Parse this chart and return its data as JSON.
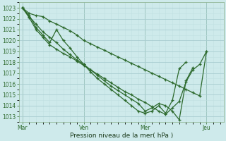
{
  "xlabel": "Pression niveau de la mer( hPa )",
  "background_color": "#ceeaeb",
  "grid_color_major": "#a8cdd0",
  "grid_color_minor": "#c0e0e2",
  "line_color": "#2d6a2d",
  "ylim": [
    1012.5,
    1023.5
  ],
  "yticks": [
    1013,
    1014,
    1015,
    1016,
    1017,
    1018,
    1019,
    1020,
    1021,
    1022,
    1023
  ],
  "xtick_labels": [
    "Mar",
    "Ven",
    "Mer",
    "Jeu"
  ],
  "xtick_positions": [
    0,
    9,
    18,
    27
  ],
  "xlim": [
    -0.5,
    29.5
  ],
  "series": [
    {
      "x": [
        0,
        1,
        2,
        3,
        4,
        5,
        6,
        7,
        8,
        9,
        10,
        11,
        12,
        13,
        14,
        15,
        16,
        17,
        18,
        19,
        20,
        21,
        22,
        23,
        24,
        25,
        26,
        27
      ],
      "y": [
        1023.0,
        1022.5,
        1022.3,
        1022.2,
        1021.8,
        1021.5,
        1021.2,
        1020.9,
        1020.5,
        1020.0,
        1019.7,
        1019.4,
        1019.1,
        1018.8,
        1018.5,
        1018.2,
        1017.9,
        1017.6,
        1017.3,
        1017.0,
        1016.7,
        1016.4,
        1016.1,
        1015.8,
        1015.5,
        1015.2,
        1014.9,
        1019.0
      ]
    },
    {
      "x": [
        0,
        1,
        2,
        3,
        4,
        5,
        6,
        7,
        8,
        9,
        10,
        11,
        12,
        13,
        14,
        15,
        16,
        17,
        18,
        19,
        20,
        21,
        22,
        23,
        24,
        25
      ],
      "y": [
        1023.0,
        1022.2,
        1021.5,
        1020.8,
        1020.3,
        1019.8,
        1019.2,
        1018.7,
        1018.2,
        1017.8,
        1017.3,
        1016.8,
        1016.3,
        1015.8,
        1015.4,
        1015.0,
        1014.6,
        1014.2,
        1013.5,
        1013.8,
        1014.2,
        1014.0,
        1013.5,
        1012.7,
        1016.3,
        1017.5
      ]
    },
    {
      "x": [
        0,
        1,
        2,
        3,
        4,
        5,
        6,
        7,
        8,
        9,
        10,
        11,
        12,
        13,
        14,
        15,
        16,
        17,
        18,
        19,
        20,
        21,
        22,
        23,
        24
      ],
      "y": [
        1023.0,
        1022.3,
        1021.2,
        1020.5,
        1019.8,
        1021.0,
        1020.0,
        1019.3,
        1018.5,
        1017.8,
        1017.1,
        1016.5,
        1016.0,
        1015.5,
        1015.0,
        1014.5,
        1014.0,
        1013.5,
        1013.3,
        1013.5,
        1014.0,
        1013.3,
        1014.5,
        1017.4,
        1018.0
      ]
    },
    {
      "x": [
        0,
        1,
        2,
        3,
        4,
        5,
        6,
        7,
        8,
        9,
        10,
        11,
        12,
        13,
        14,
        15,
        16,
        17,
        18,
        19,
        20,
        21,
        22,
        23,
        24,
        25,
        26,
        27
      ],
      "y": [
        1023.0,
        1022.1,
        1021.0,
        1020.3,
        1019.6,
        1019.2,
        1018.8,
        1018.5,
        1018.1,
        1017.7,
        1017.3,
        1016.9,
        1016.5,
        1016.1,
        1015.7,
        1015.3,
        1015.0,
        1014.6,
        1014.3,
        1013.9,
        1013.5,
        1013.2,
        1013.8,
        1014.4,
        1016.2,
        1017.3,
        1017.8,
        1019.0
      ]
    }
  ]
}
